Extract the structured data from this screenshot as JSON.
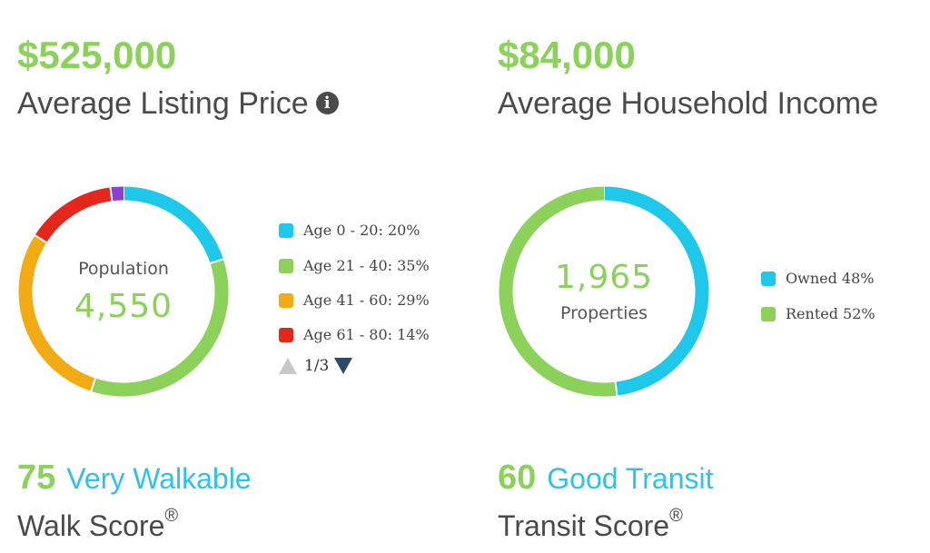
{
  "price": {
    "value": "$525,000",
    "label": "Average Listing Price",
    "info_icon": "info-icon"
  },
  "income": {
    "value": "$84,000",
    "label": "Average Household Income"
  },
  "population": {
    "title": "Population",
    "number": "4,550",
    "legend": [
      {
        "label": "Age 0 - 20: 20%",
        "color": "#1ec8ea",
        "pct": 20
      },
      {
        "label": "Age 21 - 40: 35%",
        "color": "#8bd15a",
        "pct": 35
      },
      {
        "label": "Age 41 - 60: 29%",
        "color": "#f2ab13",
        "pct": 29
      },
      {
        "label": "Age 61 - 80: 14%",
        "color": "#e5261a",
        "pct": 14
      }
    ],
    "hidden_segment_color": "#8a3fd8",
    "hidden_segment_pct": 2,
    "pager": "1/3"
  },
  "properties": {
    "number": "1,965",
    "title": "Properties",
    "legend": [
      {
        "label": "Owned 48%",
        "color": "#1ec8ea",
        "pct": 48
      },
      {
        "label": "Rented 52%",
        "color": "#8bd15a",
        "pct": 52
      }
    ]
  },
  "walk": {
    "score": "75",
    "desc": "Very Walkable",
    "label": "Walk Score",
    "mark": "®"
  },
  "transit": {
    "score": "60",
    "desc": "Good Transit",
    "label": "Transit Score",
    "mark": "®"
  }
}
